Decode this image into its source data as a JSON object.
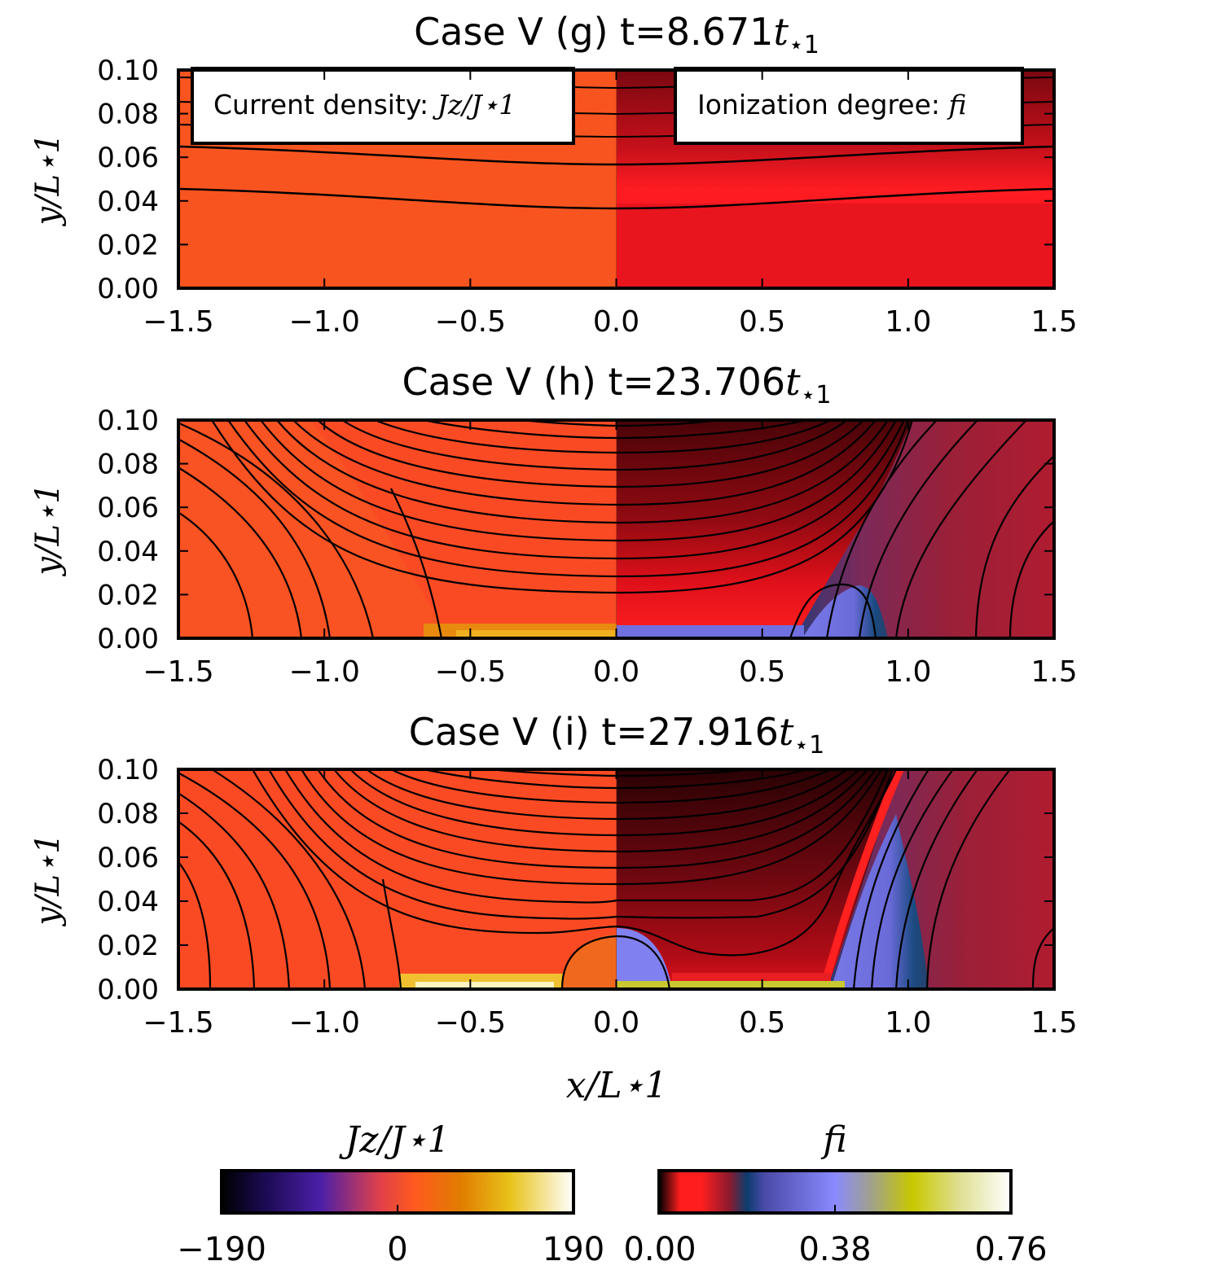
{
  "chart_data": [
    {
      "type": "heatmap",
      "panel": "g",
      "title_prefix": "Case V (g) t=",
      "time": "8.671",
      "time_unit": "t⋆1",
      "xlim": [
        -1.5,
        1.5
      ],
      "ylim": [
        0.0,
        0.1
      ],
      "xticks": [
        "−1.5",
        "−1.0",
        "−0.5",
        "0.0",
        "0.5",
        "1.0",
        "1.5"
      ],
      "yticks": [
        "0.00",
        "0.02",
        "0.04",
        "0.06",
        "0.08",
        "0.10"
      ],
      "ylabel": "y/L⋆1",
      "left_field": "J_z/J_⋆1",
      "right_field": "f_i",
      "legend_left": "Current density: ",
      "legend_left_math": "Jz/J⋆1",
      "legend_right": "Ionization degree: ",
      "legend_right_math": "fi",
      "left_color": "#f85420",
      "right_color": "#e8141e",
      "contours": [
        {
          "center": 0.057,
          "edge": 0.066
        },
        {
          "center": 0.037,
          "edge": 0.046
        }
      ]
    },
    {
      "type": "heatmap",
      "panel": "h",
      "title_prefix": "Case V (h) t=",
      "time": "23.706",
      "time_unit": "t⋆1",
      "xlim": [
        -1.5,
        1.5
      ],
      "ylim": [
        0.0,
        0.1
      ],
      "xticks": [
        "−1.5",
        "−1.0",
        "−0.5",
        "0.0",
        "0.5",
        "1.0",
        "1.5"
      ],
      "yticks": [
        "0.00",
        "0.02",
        "0.04",
        "0.06",
        "0.08",
        "0.10"
      ],
      "ylabel": "y/L⋆1",
      "left_color": "#fa4a24",
      "right_color": "#8a0c14",
      "sheet_x_bottom": 0.59,
      "sheet_x_top": 1.0,
      "contours": [
        {
          "center": 0.098
        },
        {
          "center": 0.092
        },
        {
          "center": 0.084
        },
        {
          "center": 0.076
        },
        {
          "center": 0.068
        },
        {
          "center": 0.06
        },
        {
          "center": 0.052
        },
        {
          "center": 0.044
        },
        {
          "center": 0.036
        },
        {
          "center": 0.028
        },
        {
          "center": 0.02
        },
        {
          "center": 0.012
        }
      ],
      "outer_contours_x": [
        0.6,
        0.84,
        1.02,
        1.25
      ]
    },
    {
      "type": "heatmap",
      "panel": "i",
      "title_prefix": "Case V (i) t=",
      "time": "27.916",
      "time_unit": "t⋆1",
      "xlim": [
        -1.5,
        1.5
      ],
      "ylim": [
        0.0,
        0.1
      ],
      "xticks": [
        "−1.5",
        "−1.0",
        "−0.5",
        "0.0",
        "0.5",
        "1.0",
        "1.5"
      ],
      "yticks": [
        "0.00",
        "0.02",
        "0.04",
        "0.06",
        "0.08",
        "0.10"
      ],
      "ylabel": "y/L⋆1",
      "xlabel": "x/L⋆1",
      "left_color": "#fa4a24",
      "right_color": "#6a0810",
      "sheet_x_bottom": 0.73,
      "sheet_x_top": 0.97,
      "plasmoid_x_half": 0.19,
      "plasmoid_height": 0.022,
      "contours": [
        {
          "center": 0.098
        },
        {
          "center": 0.092
        },
        {
          "center": 0.085
        },
        {
          "center": 0.078
        },
        {
          "center": 0.071
        },
        {
          "center": 0.064
        },
        {
          "center": 0.057
        },
        {
          "center": 0.05
        },
        {
          "center": 0.043
        },
        {
          "center": 0.036
        },
        {
          "center": 0.03
        }
      ],
      "outer_contours_x": [
        0.74,
        0.88,
        1.08,
        1.41
      ]
    }
  ],
  "colorbars": [
    {
      "label": "Jz/J⋆1",
      "ticks": [
        "−190",
        "0",
        "190"
      ],
      "tick_values": [
        -190,
        0,
        190
      ],
      "range": [
        -190,
        190
      ],
      "colormap": [
        "#000000",
        "#4a1fa8",
        "#ef3c3c",
        "#ff5a1e",
        "#e07d00",
        "#e8c21a",
        "#ffffff"
      ]
    },
    {
      "label": "fi",
      "ticks": [
        "0.00",
        "0.38",
        "0.76"
      ],
      "tick_values": [
        0.0,
        0.38,
        0.76
      ],
      "range": [
        0.0,
        0.76
      ],
      "colormap": [
        "#000000",
        "#ff1e1e",
        "#8c1a2e",
        "#0c3c6e",
        "#7a7aee",
        "#8a8aff",
        "#b4b428",
        "#c8c800",
        "#ffffff"
      ]
    }
  ]
}
